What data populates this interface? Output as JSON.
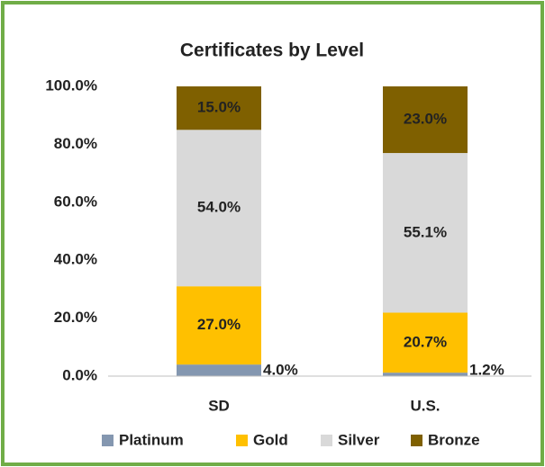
{
  "chart_data": {
    "type": "stacked_bar",
    "title": "Certificates by Level",
    "categories": [
      "SD",
      "U.S."
    ],
    "series": [
      {
        "name": "Platinum",
        "color": "#8497b0",
        "values": [
          4.0,
          1.2
        ],
        "value_labels": [
          "4.0%",
          "1.2%"
        ]
      },
      {
        "name": "Gold",
        "color": "#ffc000",
        "values": [
          27.0,
          20.7
        ],
        "value_labels": [
          "27.0%",
          "20.7%"
        ]
      },
      {
        "name": "Silver",
        "color": "#d9d9d9",
        "values": [
          54.0,
          55.1
        ],
        "value_labels": [
          "54.0%",
          "55.1%"
        ]
      },
      {
        "name": "Bronze",
        "color": "#7f6000",
        "values": [
          15.0,
          23.0
        ],
        "value_labels": [
          "15.0%",
          "23.0%"
        ]
      }
    ],
    "ylim": [
      0,
      100
    ],
    "yticks": [
      {
        "value": 0,
        "label": "0.0%"
      },
      {
        "value": 20,
        "label": "20.0%"
      },
      {
        "value": 40,
        "label": "40.0%"
      },
      {
        "value": 60,
        "label": "60.0%"
      },
      {
        "value": 80,
        "label": "80.0%"
      },
      {
        "value": 100,
        "label": "100.0%"
      }
    ],
    "grid": false,
    "legend": "bottom"
  }
}
